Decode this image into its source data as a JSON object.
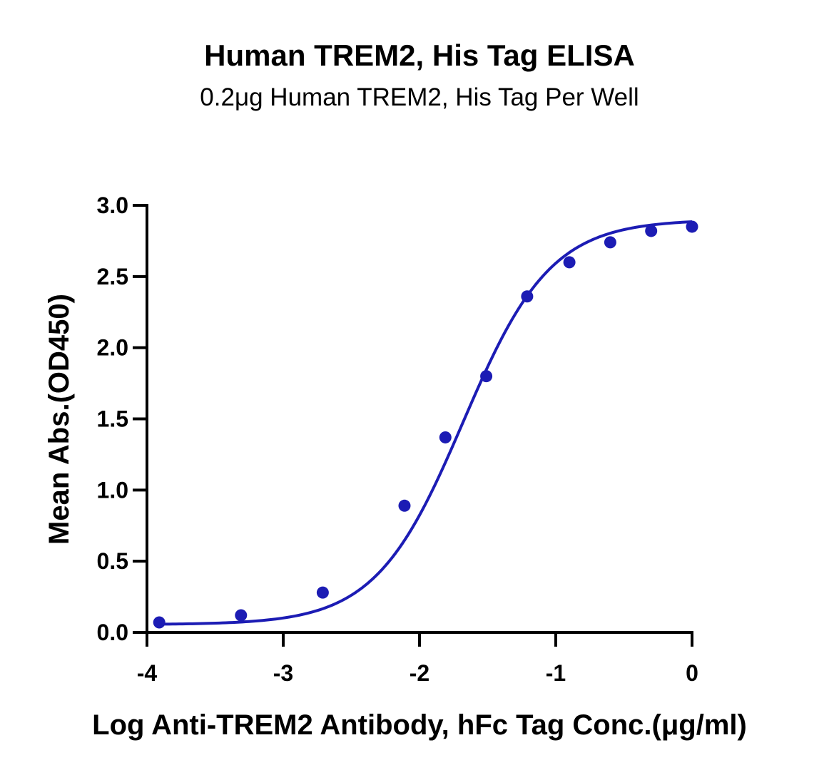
{
  "chart_data": {
    "type": "scatter",
    "title": "Human TREM2, His Tag ELISA",
    "subtitle": "0.2μg Human TREM2, His Tag Per Well",
    "xlabel": "Log Anti-TREM2 Antibody, hFc Tag Conc.(μg/ml)",
    "ylabel": "Mean Abs.(OD450)",
    "xlim": [
      -4,
      0
    ],
    "ylim": [
      0,
      3
    ],
    "xticks": [
      "-4",
      "-3",
      "-2",
      "-1",
      "0"
    ],
    "yticks": [
      "0.0",
      "0.5",
      "1.0",
      "1.5",
      "2.0",
      "2.5",
      "3.0"
    ],
    "grid": false,
    "series": [
      {
        "x": [
          -3.91,
          -3.31,
          -2.71,
          -2.11,
          -1.81,
          -1.51,
          -1.21,
          -0.9,
          -0.6,
          -0.3,
          0.0
        ],
        "y": [
          0.07,
          0.12,
          0.28,
          0.89,
          1.37,
          1.8,
          2.36,
          2.6,
          2.74,
          2.82,
          2.85
        ],
        "color": "#1c1cb4"
      }
    ],
    "fit": {
      "model": "4PL",
      "bottom": 0.055,
      "top": 2.9,
      "log_ec50": -1.68,
      "hill_slope": 1.35,
      "x_range": [
        -3.91,
        0.0
      ]
    }
  }
}
